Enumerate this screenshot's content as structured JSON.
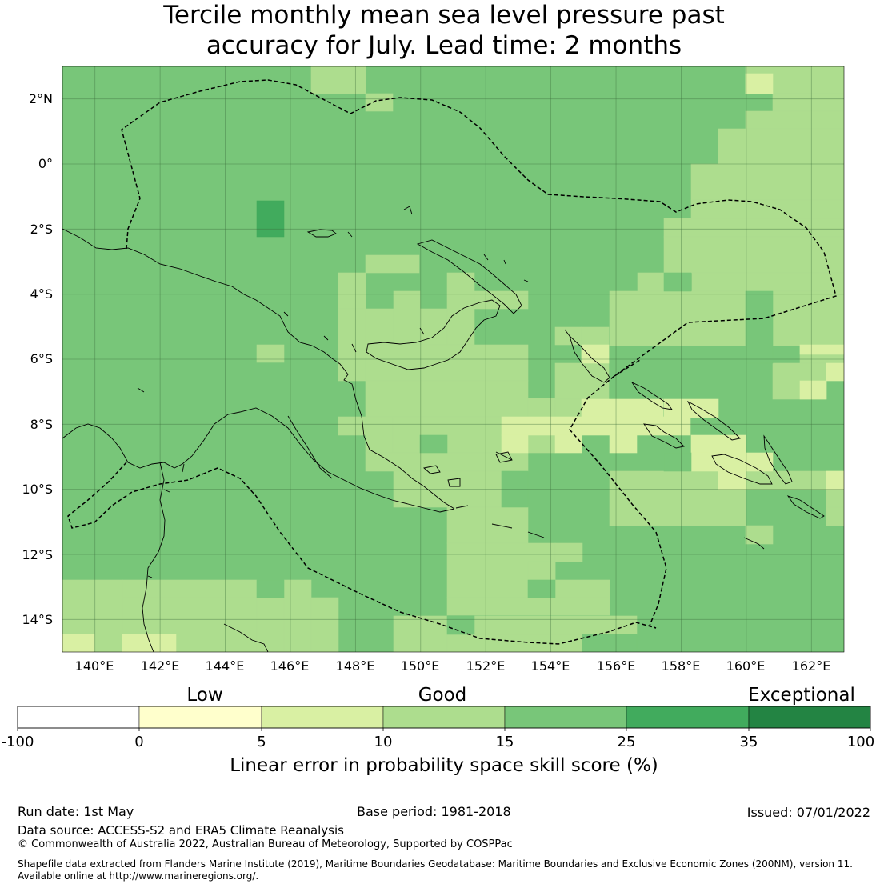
{
  "title": {
    "line1": "Tercile monthly mean sea level pressure past",
    "line2": "accuracy for July. Lead time: 2 months"
  },
  "map": {
    "lon_ticks": [
      "140°E",
      "142°E",
      "144°E",
      "146°E",
      "148°E",
      "150°E",
      "152°E",
      "154°E",
      "156°E",
      "158°E",
      "160°E",
      "162°E"
    ],
    "lat_ticks": [
      "2°N",
      "0°",
      "2°S",
      "4°S",
      "6°S",
      "8°S",
      "10°S",
      "12°S",
      "14°S"
    ],
    "lon_range": [
      139,
      163
    ],
    "lat_range": [
      -15,
      3
    ],
    "colors": {
      "low": "#ffffcc",
      "5-10": "#d9f0a3",
      "10-15": "#addd8e",
      "15-25": "#78c679",
      "25-35": "#41ab5d",
      "35-100": "#238443"
    }
  },
  "colorbar": {
    "categories": [
      "Low",
      "Good",
      "Exceptional"
    ],
    "tick_labels": [
      "-100",
      "0",
      "5",
      "10",
      "15",
      "25",
      "35",
      "100"
    ],
    "segment_colors": [
      "#ffffff",
      "#ffffcc",
      "#d9f0a3",
      "#addd8e",
      "#78c679",
      "#41ab5d",
      "#238443"
    ],
    "axis_label": "Linear error in probability space skill score (%)"
  },
  "footer": {
    "run_date": "Run date: 1st May",
    "base_period": "Base period: 1981-2018",
    "issued": "Issued: 07/01/2022",
    "data_source": "Data source: ACCESS-S2 and ERA5 Climate Reanalysis",
    "copyright": "© Commonwealth of Australia 2022, Australian Bureau of Meteorology, Supported by COSPPac",
    "shapefile_line1": "Shapefile data extracted from Flanders Marine Institute (2019), Maritime Boundaries Geodatabase: Maritime Boundaries and Exclusive Economic Zones (200NM), version 11.",
    "shapefile_line2": "Available online at http://www.marineregions.org/."
  }
}
